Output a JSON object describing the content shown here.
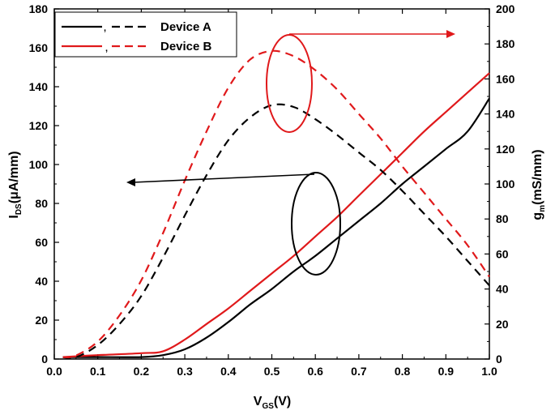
{
  "chart_data": {
    "type": "line",
    "x_label": {
      "main": "V",
      "sub": "GS",
      "rest": "(V)"
    },
    "y_left_label": {
      "main": "I",
      "sub": "DS",
      "rest": "(μA/mm)"
    },
    "y_right_label": {
      "main": "g",
      "sub": "m",
      "rest": "(mS/mm)"
    },
    "xlim": [
      0.0,
      1.0
    ],
    "ylim_left": [
      0,
      180
    ],
    "ylim_right": [
      0,
      200
    ],
    "x_ticks": [
      "0.0",
      "0.1",
      "0.2",
      "0.3",
      "0.4",
      "0.5",
      "0.6",
      "0.7",
      "0.8",
      "0.9",
      "1.0"
    ],
    "y_left_ticks": [
      "0",
      "20",
      "40",
      "60",
      "80",
      "100",
      "120",
      "140",
      "160",
      "180"
    ],
    "y_right_ticks": [
      "0",
      "20",
      "40",
      "60",
      "80",
      "100",
      "120",
      "140",
      "160",
      "180",
      "200"
    ],
    "grid": false,
    "legend": {
      "placement": "top-left",
      "items": [
        {
          "label": "Device A",
          "sep": ",",
          "color": "#000000"
        },
        {
          "label": "Device B",
          "sep": ",",
          "color": "#e0191b"
        }
      ]
    },
    "series": [
      {
        "device": "Device A",
        "quantity": "IDS",
        "axis": "left",
        "style": "solid",
        "color": "#000000",
        "x": [
          0.02,
          0.1,
          0.2,
          0.25,
          0.3,
          0.35,
          0.4,
          0.45,
          0.5,
          0.55,
          0.6,
          0.65,
          0.7,
          0.75,
          0.8,
          0.85,
          0.9,
          0.95,
          1.0
        ],
        "y": [
          1,
          1,
          1,
          2,
          5,
          11,
          19,
          28,
          36,
          45,
          53,
          62,
          71,
          80,
          90,
          99,
          108,
          117,
          134
        ]
      },
      {
        "device": "Device B",
        "quantity": "IDS",
        "axis": "left",
        "style": "solid",
        "color": "#e0191b",
        "x": [
          0.02,
          0.1,
          0.2,
          0.25,
          0.3,
          0.35,
          0.4,
          0.45,
          0.5,
          0.55,
          0.6,
          0.65,
          0.7,
          0.75,
          0.8,
          0.85,
          0.9,
          0.95,
          1.0
        ],
        "y": [
          1,
          2,
          3,
          4,
          10,
          18,
          26,
          35,
          44,
          53,
          63,
          73,
          84,
          95,
          106,
          117,
          127,
          137,
          147
        ]
      },
      {
        "device": "Device A",
        "quantity": "gm",
        "axis": "right",
        "style": "dashed",
        "color": "#000000",
        "x": [
          0.02,
          0.05,
          0.1,
          0.15,
          0.2,
          0.25,
          0.3,
          0.35,
          0.4,
          0.45,
          0.5,
          0.55,
          0.6,
          0.65,
          0.7,
          0.75,
          0.8,
          0.85,
          0.9,
          0.95,
          1.0
        ],
        "y": [
          1,
          1,
          8,
          20,
          36,
          58,
          82,
          105,
          125,
          138,
          145,
          144,
          137,
          128,
          118,
          108,
          96,
          83,
          70,
          56,
          42
        ]
      },
      {
        "device": "Device B",
        "quantity": "gm",
        "axis": "right",
        "style": "dashed",
        "color": "#e0191b",
        "x": [
          0.02,
          0.05,
          0.1,
          0.15,
          0.2,
          0.25,
          0.3,
          0.35,
          0.4,
          0.45,
          0.5,
          0.55,
          0.6,
          0.65,
          0.7,
          0.75,
          0.8,
          0.85,
          0.9,
          0.95,
          1.0
        ],
        "y": [
          1,
          2,
          10,
          25,
          45,
          72,
          102,
          130,
          155,
          171,
          176,
          173,
          165,
          154,
          140,
          126,
          110,
          95,
          80,
          65,
          47
        ]
      }
    ]
  }
}
